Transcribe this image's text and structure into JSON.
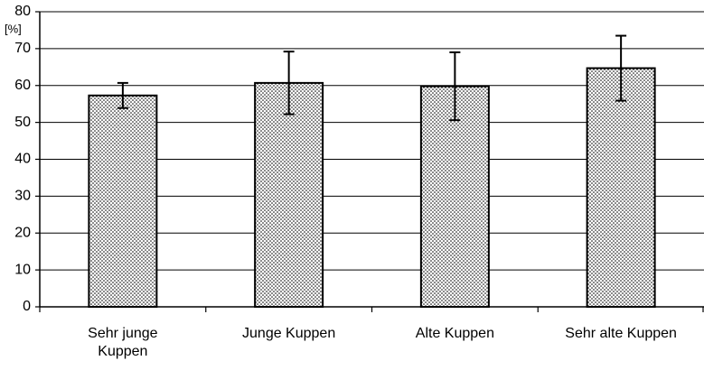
{
  "chart_data": {
    "type": "bar",
    "ylabel": "[%]",
    "categories": [
      "Sehr junge Kuppen",
      "Junge Kuppen",
      "Alte Kuppen",
      "Sehr alte Kuppen"
    ],
    "values": [
      57.3,
      60.7,
      59.8,
      64.7
    ],
    "errors": [
      3.4,
      8.5,
      9.2,
      8.8
    ],
    "color": "#000000",
    "ylim": [
      0,
      80
    ],
    "yticks": [
      0,
      10,
      20,
      30,
      40,
      50,
      60,
      70,
      80
    ],
    "grid": true
  }
}
